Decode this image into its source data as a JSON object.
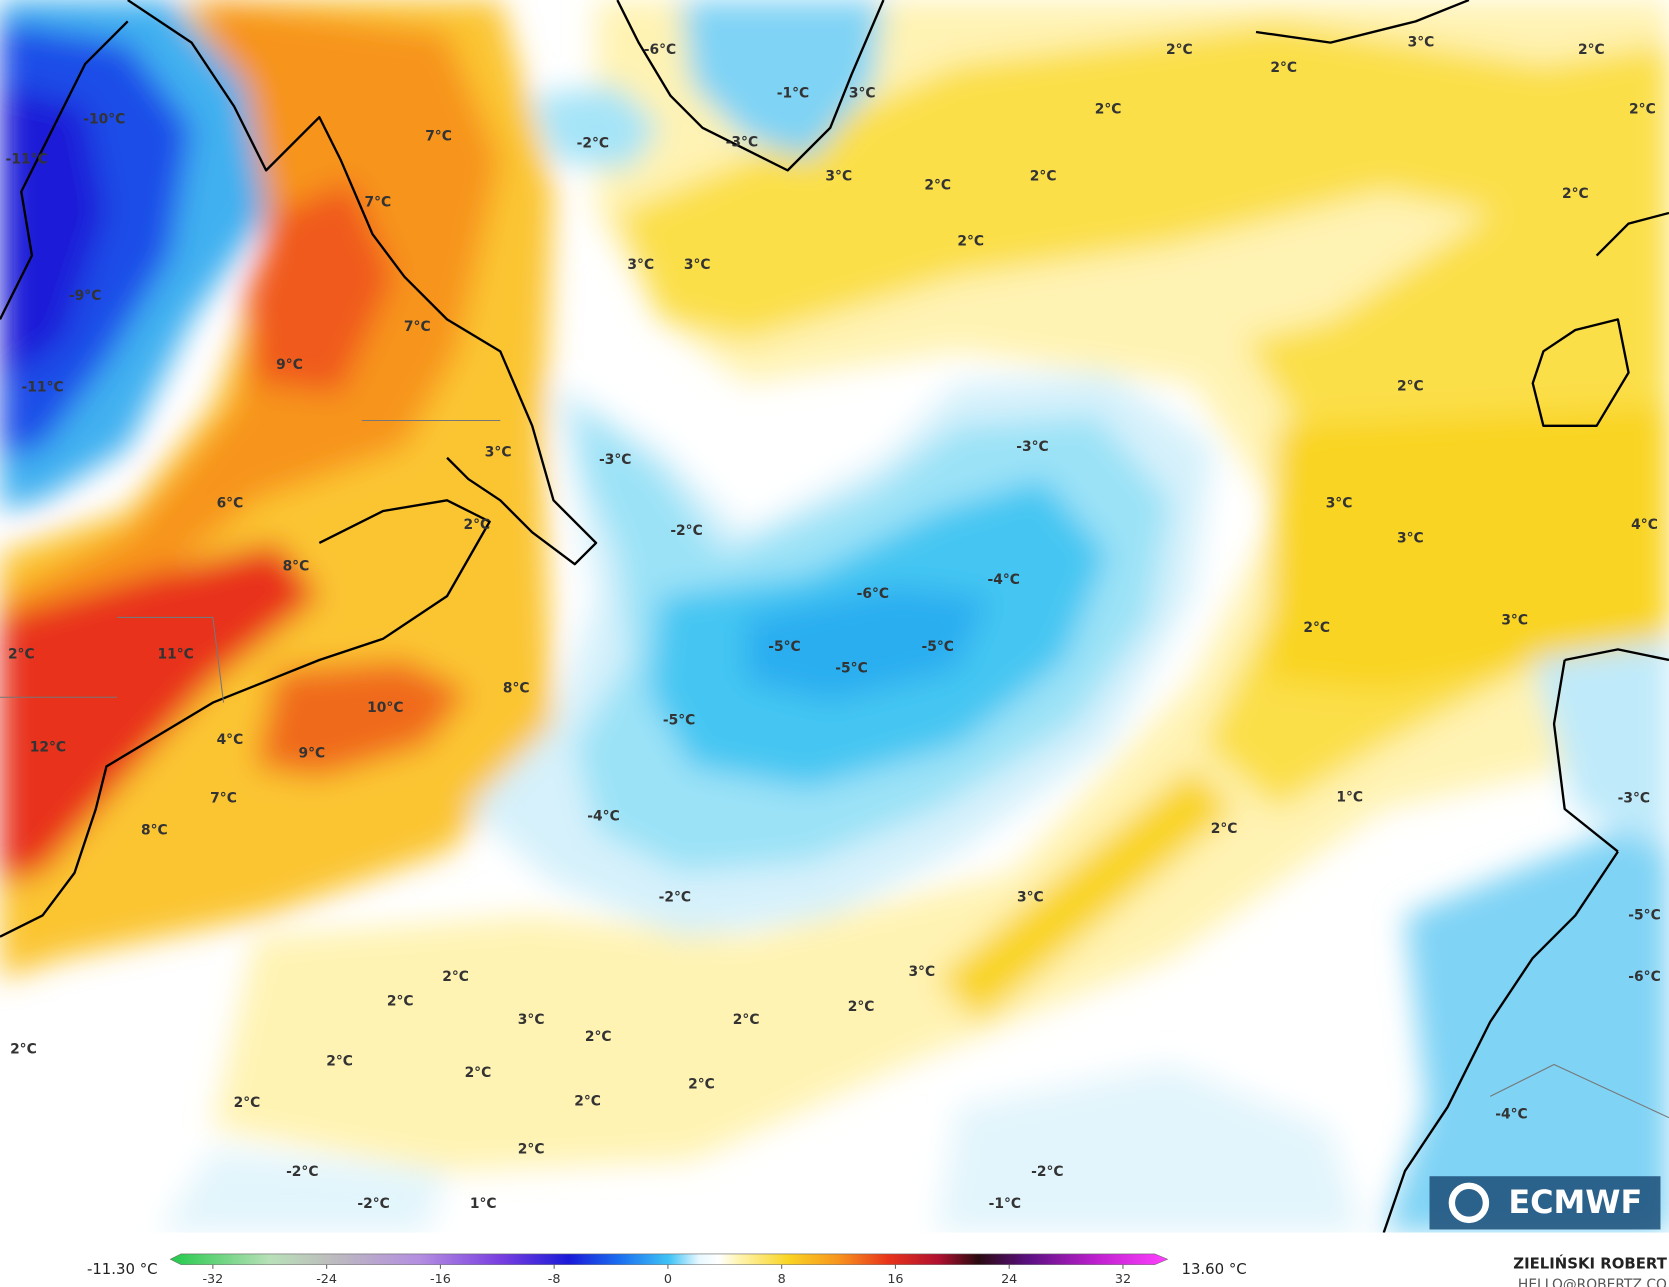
{
  "map": {
    "labels": [
      "-10°C",
      "-11°C",
      "-9°C",
      "-11°C",
      "7°C",
      "7°C",
      "7°C",
      "9°C",
      "3°C",
      "6°C",
      "2°C",
      "8°C",
      "11°C",
      "10°C",
      "8°C",
      "4°C",
      "9°C",
      "12°C",
      "7°C",
      "8°C",
      "2°C",
      "-6°C",
      "-2°C",
      "-1°C",
      "3°C",
      "-3°C",
      "3°C",
      "3°C",
      "3°C",
      "2°C",
      "2°C",
      "3°C",
      "2°C",
      "2°C",
      "2°C",
      "2°C",
      "2°C",
      "2°C",
      "2°C",
      "2°C",
      "-3°C",
      "-3°C",
      "-2°C",
      "3°C",
      "3°C",
      "4°C",
      "-6°C",
      "-4°C",
      "-5°C",
      "-5°C",
      "-5°C",
      "2°C",
      "3°C",
      "-5°C",
      "-4°C",
      "1°C",
      "2°C",
      "-2°C",
      "3°C",
      "3°C",
      "2°C",
      "2°C",
      "2°C",
      "3°C",
      "2°C",
      "2°C",
      "2°C",
      "2°C",
      "2°C",
      "2°C",
      "2°C",
      "2°C",
      "2°C",
      "-2°C",
      "-2°C",
      "-2°C",
      "1°C",
      "-1°C",
      "-5°C",
      "-6°C",
      "-4°C",
      "-3°C"
    ]
  },
  "colorbar": {
    "min_label": "-11.30 °C",
    "max_label": "13.60 °C",
    "ticks": [
      "-32",
      "-24",
      "-16",
      "-8",
      "0",
      "8",
      "16",
      "24",
      "32"
    ]
  },
  "credit": {
    "author": "ZIELIŃSKI ROBERT",
    "contact": "HELLO@ROBERTZ.CO"
  },
  "logo": {
    "text": "ECMWF"
  }
}
